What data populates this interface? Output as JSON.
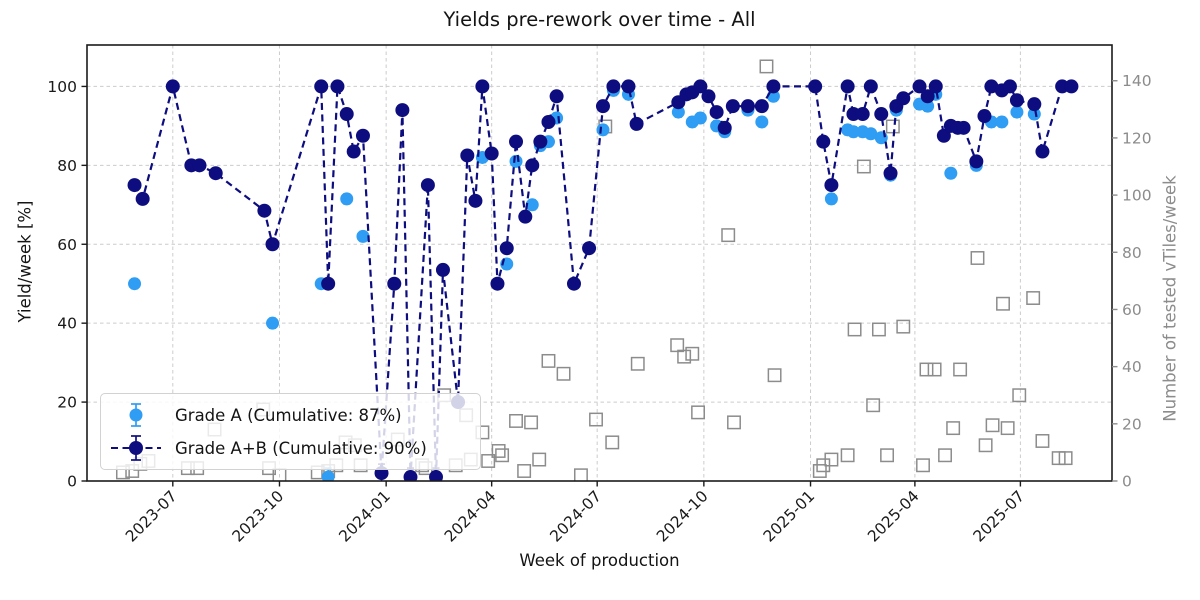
{
  "title": "Yields pre-rework over time - All",
  "axes": {
    "x_label": "Week of production",
    "y_left_label": "Yield/week [%]",
    "y_right_label": "Number of tested vTiles/week"
  },
  "colors": {
    "grade_a": "#2e9df3",
    "grade_ab": "#0d0d80",
    "squares": "#8c8c8c",
    "grid": "#cccccc",
    "axis_text": "#1a1a1a",
    "right_axis_text": "#8c8c8c",
    "spine": "#1a1a1a"
  },
  "chart_data": {
    "type": "line",
    "title": "Yields pre-rework over time - All",
    "xlabel": "Week of production",
    "x_domain": [
      "2023-04-18",
      "2025-09-18"
    ],
    "x_ticks": [
      "2023-07",
      "2023-10",
      "2024-01",
      "2024-04",
      "2024-07",
      "2024-10",
      "2025-01",
      "2025-04",
      "2025-07"
    ],
    "y_left": {
      "label": "Yield/week [%]",
      "ticks": [
        0,
        20,
        40,
        60,
        80,
        100
      ],
      "max": 110.5
    },
    "y_right": {
      "label": "Number of tested vTiles/week",
      "ticks": [
        0,
        20,
        40,
        60,
        80,
        100,
        120,
        140
      ],
      "max": 152.5
    },
    "grid": true,
    "legend_position": "lower left",
    "series": [
      {
        "name": "Grade A (Cumulative: 87%)",
        "type": "scatter-errorbar",
        "axis": "left",
        "marker": "circle",
        "color": "#2e9df3",
        "points": [
          [
            "2023-05-29",
            50
          ],
          [
            "2023-09-25",
            40
          ],
          [
            "2023-11-06",
            50
          ],
          [
            "2023-11-12",
            1
          ],
          [
            "2023-11-28",
            71.5
          ],
          [
            "2023-12-12",
            62
          ],
          [
            "2024-03-24",
            82
          ],
          [
            "2024-04-14",
            55
          ],
          [
            "2024-04-22",
            81
          ],
          [
            "2024-05-06",
            70
          ],
          [
            "2024-05-13",
            85
          ],
          [
            "2024-05-20",
            86
          ],
          [
            "2024-05-27",
            92
          ],
          [
            "2024-07-06",
            89
          ],
          [
            "2024-07-15",
            99
          ],
          [
            "2024-07-28",
            98
          ],
          [
            "2024-09-09",
            93.5
          ],
          [
            "2024-09-21",
            91
          ],
          [
            "2024-09-28",
            92
          ],
          [
            "2024-10-12",
            90
          ],
          [
            "2024-10-19",
            88.5
          ],
          [
            "2024-11-08",
            94
          ],
          [
            "2024-11-20",
            91
          ],
          [
            "2024-11-30",
            97.5
          ],
          [
            "2025-01-19",
            71.5
          ],
          [
            "2025-02-02",
            89
          ],
          [
            "2025-02-07",
            88.5
          ],
          [
            "2025-02-15",
            88.5
          ],
          [
            "2025-02-22",
            88
          ],
          [
            "2025-03-03",
            87
          ],
          [
            "2025-03-11",
            77.5
          ],
          [
            "2025-03-16",
            94
          ],
          [
            "2025-04-05",
            95.5
          ],
          [
            "2025-04-12",
            95
          ],
          [
            "2025-04-19",
            98
          ],
          [
            "2025-05-02",
            78
          ],
          [
            "2025-05-24",
            80
          ],
          [
            "2025-06-06",
            91
          ],
          [
            "2025-06-15",
            91
          ],
          [
            "2025-06-28",
            93.5
          ],
          [
            "2025-07-13",
            93
          ]
        ]
      },
      {
        "name": "Grade A+B (Cumulative: 90%)",
        "type": "line-scatter-errorbar",
        "dashed": true,
        "axis": "left",
        "marker": "circle",
        "color": "#0d0d80",
        "points": [
          [
            "2023-05-29",
            75
          ],
          [
            "2023-06-05",
            71.5
          ],
          [
            "2023-07-01",
            100
          ],
          [
            "2023-07-17",
            80
          ],
          [
            "2023-07-24",
            80
          ],
          [
            "2023-08-07",
            78
          ],
          [
            "2023-09-18",
            68.5
          ],
          [
            "2023-09-25",
            60
          ],
          [
            "2023-11-06",
            100
          ],
          [
            "2023-11-12",
            50
          ],
          [
            "2023-11-20",
            100
          ],
          [
            "2023-11-28",
            93
          ],
          [
            "2023-12-04",
            83.5
          ],
          [
            "2023-12-12",
            87.5
          ],
          [
            "2023-12-28",
            2
          ],
          [
            "2024-01-08",
            50
          ],
          [
            "2024-01-15",
            94
          ],
          [
            "2024-01-22",
            1
          ],
          [
            "2024-02-06",
            75
          ],
          [
            "2024-02-13",
            1
          ],
          [
            "2024-02-19",
            53.5
          ],
          [
            "2024-03-03",
            20
          ],
          [
            "2024-03-11",
            82.5
          ],
          [
            "2024-03-18",
            71
          ],
          [
            "2024-03-24",
            100
          ],
          [
            "2024-04-01",
            83
          ],
          [
            "2024-04-06",
            50
          ],
          [
            "2024-04-14",
            59
          ],
          [
            "2024-04-22",
            86
          ],
          [
            "2024-04-30",
            67
          ],
          [
            "2024-05-06",
            80
          ],
          [
            "2024-05-13",
            86
          ],
          [
            "2024-05-20",
            91
          ],
          [
            "2024-05-27",
            97.5
          ],
          [
            "2024-06-11",
            50
          ],
          [
            "2024-06-24",
            59
          ],
          [
            "2024-07-06",
            95
          ],
          [
            "2024-07-15",
            100
          ],
          [
            "2024-07-28",
            100
          ],
          [
            "2024-08-04",
            90.5
          ],
          [
            "2024-09-09",
            96
          ],
          [
            "2024-09-16",
            98
          ],
          [
            "2024-09-21",
            98.5
          ],
          [
            "2024-09-28",
            100
          ],
          [
            "2024-10-05",
            97.5
          ],
          [
            "2024-10-12",
            93.5
          ],
          [
            "2024-10-19",
            89.5
          ],
          [
            "2024-10-26",
            95
          ],
          [
            "2024-11-08",
            95
          ],
          [
            "2024-11-20",
            95
          ],
          [
            "2024-11-30",
            100
          ],
          [
            "2025-01-05",
            100
          ],
          [
            "2025-01-12",
            86
          ],
          [
            "2025-01-19",
            75
          ],
          [
            "2025-02-02",
            100
          ],
          [
            "2025-02-07",
            93
          ],
          [
            "2025-02-15",
            93
          ],
          [
            "2025-02-22",
            100
          ],
          [
            "2025-03-03",
            93
          ],
          [
            "2025-03-11",
            78
          ],
          [
            "2025-03-16",
            95
          ],
          [
            "2025-03-22",
            97
          ],
          [
            "2025-04-05",
            100
          ],
          [
            "2025-04-12",
            97.5
          ],
          [
            "2025-04-19",
            100
          ],
          [
            "2025-04-26",
            87.5
          ],
          [
            "2025-05-02",
            90
          ],
          [
            "2025-05-08",
            89.5
          ],
          [
            "2025-05-13",
            89.5
          ],
          [
            "2025-05-24",
            81
          ],
          [
            "2025-05-31",
            92.5
          ],
          [
            "2025-06-06",
            100
          ],
          [
            "2025-06-15",
            99
          ],
          [
            "2025-06-22",
            100
          ],
          [
            "2025-06-28",
            96.5
          ],
          [
            "2025-07-13",
            95.5
          ],
          [
            "2025-07-20",
            83.5
          ],
          [
            "2025-08-06",
            100
          ],
          [
            "2025-08-14",
            100
          ]
        ]
      },
      {
        "name": "Number of tested vTiles/week",
        "type": "scatter",
        "axis": "right",
        "marker": "open-square",
        "color": "#8c8c8c",
        "points": [
          [
            "2023-05-19",
            3
          ],
          [
            "2023-05-27",
            3.5
          ],
          [
            "2023-06-03",
            6
          ],
          [
            "2023-06-10",
            7
          ],
          [
            "2023-07-14",
            4.5
          ],
          [
            "2023-07-22",
            4.5
          ],
          [
            "2023-08-06",
            18
          ],
          [
            "2023-09-17",
            25
          ],
          [
            "2023-09-22",
            4.5
          ],
          [
            "2023-10-01",
            2
          ],
          [
            "2023-11-03",
            3
          ],
          [
            "2023-11-12",
            3.5
          ],
          [
            "2023-11-19",
            5.5
          ],
          [
            "2023-11-27",
            13.5
          ],
          [
            "2023-12-05",
            12.5
          ],
          [
            "2023-12-10",
            5.5
          ],
          [
            "2024-01-11",
            14.5
          ],
          [
            "2024-02-01",
            5.5
          ],
          [
            "2024-02-04",
            4.5
          ],
          [
            "2024-02-20",
            30
          ],
          [
            "2024-03-01",
            5.5
          ],
          [
            "2024-03-10",
            23
          ],
          [
            "2024-03-14",
            7.5
          ],
          [
            "2024-03-24",
            17
          ],
          [
            "2024-03-29",
            7
          ],
          [
            "2024-04-07",
            10.5
          ],
          [
            "2024-04-10",
            9
          ],
          [
            "2024-04-22",
            21
          ],
          [
            "2024-04-29",
            3.5
          ],
          [
            "2024-05-05",
            20.5
          ],
          [
            "2024-05-12",
            7.5
          ],
          [
            "2024-05-20",
            42
          ],
          [
            "2024-06-02",
            37.5
          ],
          [
            "2024-06-17",
            2
          ],
          [
            "2024-06-30",
            21.5
          ],
          [
            "2024-07-08",
            124
          ],
          [
            "2024-07-14",
            13.5
          ],
          [
            "2024-08-05",
            41
          ],
          [
            "2024-09-08",
            47.5
          ],
          [
            "2024-09-14",
            43.5
          ],
          [
            "2024-09-21",
            44.5
          ],
          [
            "2024-09-26",
            24
          ],
          [
            "2024-10-22",
            86
          ],
          [
            "2024-10-27",
            20.5
          ],
          [
            "2024-11-24",
            145
          ],
          [
            "2024-12-01",
            37
          ],
          [
            "2025-01-09",
            3.5
          ],
          [
            "2025-01-12",
            5.5
          ],
          [
            "2025-01-19",
            7.5
          ],
          [
            "2025-02-02",
            9
          ],
          [
            "2025-02-08",
            53
          ],
          [
            "2025-02-16",
            110
          ],
          [
            "2025-02-24",
            26.5
          ],
          [
            "2025-03-01",
            53
          ],
          [
            "2025-03-08",
            9
          ],
          [
            "2025-03-13",
            124
          ],
          [
            "2025-03-22",
            54
          ],
          [
            "2025-04-08",
            5.5
          ],
          [
            "2025-04-11",
            39
          ],
          [
            "2025-04-18",
            39
          ],
          [
            "2025-04-27",
            9
          ],
          [
            "2025-05-04",
            18.5
          ],
          [
            "2025-05-10",
            39
          ],
          [
            "2025-05-25",
            78
          ],
          [
            "2025-06-01",
            12.5
          ],
          [
            "2025-06-07",
            19.5
          ],
          [
            "2025-06-16",
            62
          ],
          [
            "2025-06-20",
            18.5
          ],
          [
            "2025-06-30",
            30
          ],
          [
            "2025-07-12",
            64
          ],
          [
            "2025-07-20",
            14
          ],
          [
            "2025-08-03",
            8
          ],
          [
            "2025-08-09",
            8
          ]
        ]
      }
    ]
  }
}
